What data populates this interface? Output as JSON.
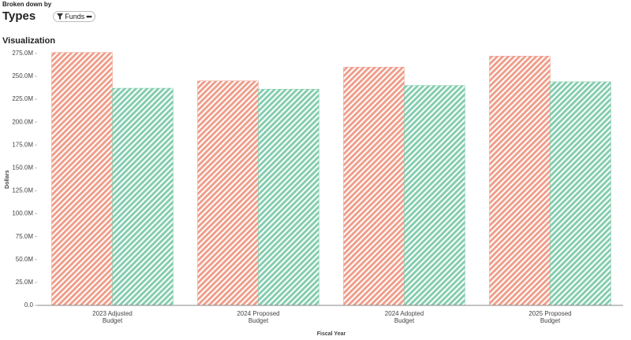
{
  "header": {
    "subtitle": "Broken down by",
    "title": "Types",
    "filter": "Funds"
  },
  "section_title": "Visualization",
  "chart_data": {
    "type": "bar",
    "x_label": "Fiscal Year",
    "y_label": "Dollars",
    "categories": [
      "2023 Adjusted Budget",
      "2024 Proposed Budget",
      "2024 Adopted Budget",
      "2025 Proposed Budget"
    ],
    "series": [
      {
        "color": "#ee9f8c",
        "values": [
          276000000,
          245000000,
          260000000,
          272000000
        ]
      },
      {
        "color": "#86cdb0",
        "values": [
          237000000,
          236000000,
          240000000,
          244000000
        ]
      }
    ],
    "ylim": [
      0,
      280000000
    ],
    "yticks": [
      {
        "value": 0,
        "label": "0.0"
      },
      {
        "value": 25000000,
        "label": "25.0M"
      },
      {
        "value": 50000000,
        "label": "50.0M"
      },
      {
        "value": 75000000,
        "label": "75.0M"
      },
      {
        "value": 100000000,
        "label": "100.0M"
      },
      {
        "value": 125000000,
        "label": "125.0M"
      },
      {
        "value": 150000000,
        "label": "150.0M"
      },
      {
        "value": 175000000,
        "label": "175.0M"
      },
      {
        "value": 200000000,
        "label": "200.0M"
      },
      {
        "value": 225000000,
        "label": "225.0M"
      },
      {
        "value": 250000000,
        "label": "250.0M"
      },
      {
        "value": 275000000,
        "label": "275.0M"
      }
    ],
    "grid": false
  }
}
